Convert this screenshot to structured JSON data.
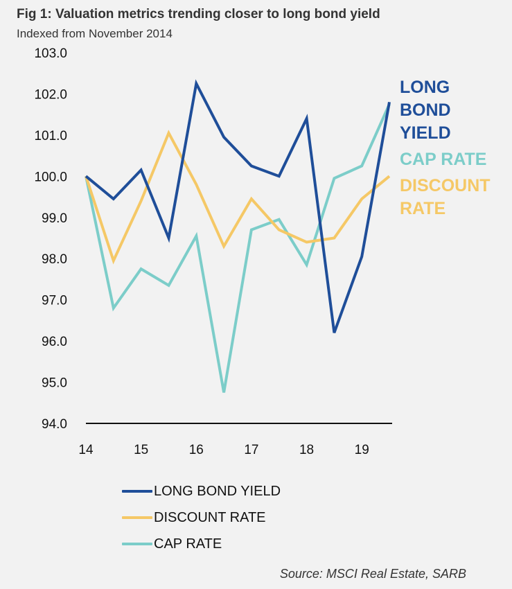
{
  "title": "Fig 1: Valuation metrics trending closer to long bond yield",
  "subtitle": "Indexed from November 2014",
  "source": "Source: MSCI Real Estate, SARB",
  "colors": {
    "long_bond_yield": "#1f4e99",
    "discount_rate": "#f5c866",
    "cap_rate": "#7ccdc9",
    "axis": "#111111",
    "background": "#f2f2f2"
  },
  "end_labels": {
    "long_bond_yield": [
      "LONG",
      "BOND",
      "YIELD"
    ],
    "cap_rate": [
      "CAP RATE"
    ],
    "discount_rate": [
      "DISCOUNT",
      "RATE"
    ]
  },
  "legend": [
    {
      "key": "long_bond_yield",
      "label": "LONG BOND YIELD"
    },
    {
      "key": "discount_rate",
      "label": "DISCOUNT RATE"
    },
    {
      "key": "cap_rate",
      "label": "CAP RATE"
    }
  ],
  "chart_data": {
    "type": "line",
    "x": [
      14,
      14.5,
      15,
      15.5,
      16,
      16.5,
      17,
      17.5,
      18,
      18.5,
      19,
      19.5
    ],
    "x_tick_labels": [
      "14",
      "15",
      "16",
      "17",
      "18",
      "19"
    ],
    "x_ticks": [
      14,
      15,
      16,
      17,
      18,
      19
    ],
    "xlim": [
      14,
      19.55
    ],
    "ylim": [
      94,
      103
    ],
    "y_ticks": [
      94,
      95,
      96,
      97,
      98,
      99,
      100,
      101,
      102,
      103
    ],
    "y_tick_labels": [
      "94.0",
      "95.0",
      "96.0",
      "97.0",
      "98.0",
      "99.0",
      "100.0",
      "101.0",
      "102.0",
      "103.0"
    ],
    "grid": false,
    "legend_position": "bottom",
    "series": [
      {
        "key": "long_bond_yield",
        "name": "LONG BOND YIELD",
        "values": [
          100.0,
          99.45,
          100.15,
          98.5,
          102.25,
          100.95,
          100.25,
          100.0,
          101.4,
          96.2,
          98.05,
          101.8
        ]
      },
      {
        "key": "discount_rate",
        "name": "DISCOUNT RATE",
        "values": [
          100.0,
          97.95,
          99.4,
          101.05,
          99.8,
          98.3,
          99.45,
          98.7,
          98.4,
          98.5,
          99.45,
          100.0
        ]
      },
      {
        "key": "cap_rate",
        "name": "CAP RATE",
        "values": [
          100.0,
          96.8,
          97.75,
          97.35,
          98.55,
          94.75,
          98.7,
          98.95,
          97.85,
          99.95,
          100.25,
          101.75
        ]
      }
    ]
  }
}
